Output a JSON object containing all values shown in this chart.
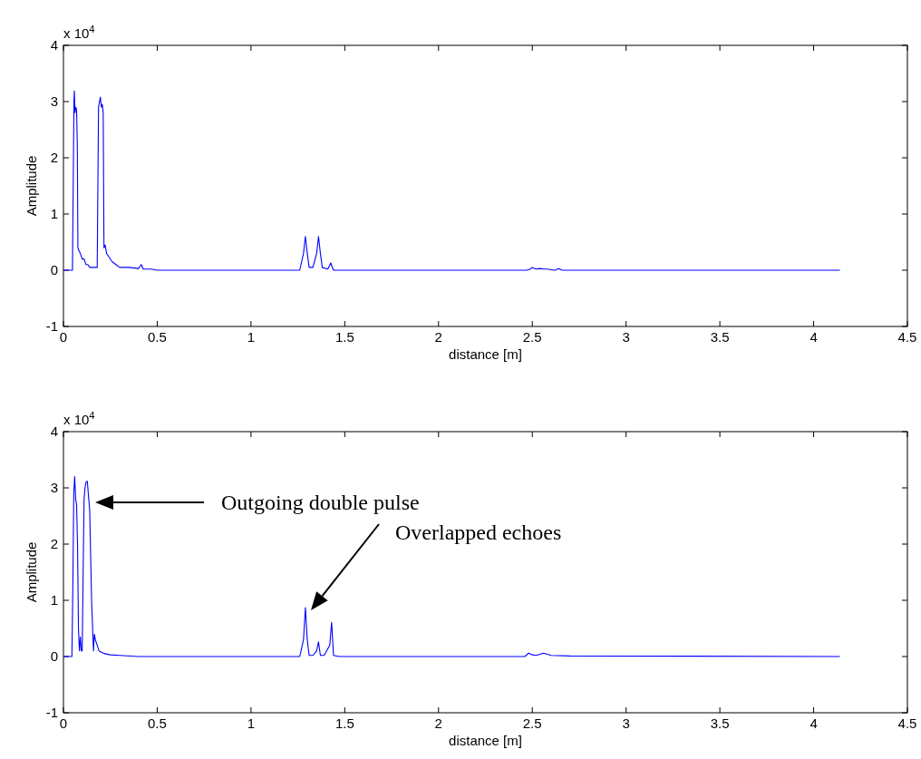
{
  "chart_data": [
    {
      "type": "line",
      "xlabel": "distance [m]",
      "ylabel": "Amplitude",
      "xlim": [
        0,
        4.5
      ],
      "ylim": [
        -1,
        4
      ],
      "xticks": [
        0,
        0.5,
        1,
        1.5,
        2,
        2.5,
        3,
        3.5,
        4,
        4.5
      ],
      "yticks": [
        -1,
        0,
        1,
        2,
        3,
        4
      ],
      "grid": false,
      "marker": "none",
      "line_style": "solid",
      "annotations": [
        "x 10$^{4}$"
      ],
      "series": [
        {
          "color": "#0000ff",
          "x": [
            0,
            0.048,
            0.052,
            0.056,
            0.058,
            0.062,
            0.066,
            0.07,
            0.074,
            0.077,
            0.082,
            0.09,
            0.1,
            0.11,
            0.12,
            0.13,
            0.14,
            0.15,
            0.16,
            0.17,
            0.18,
            0.187,
            0.192,
            0.197,
            0.202,
            0.207,
            0.212,
            0.216,
            0.222,
            0.23,
            0.24,
            0.26,
            0.28,
            0.3,
            0.35,
            0.4,
            0.415,
            0.425,
            0.47,
            0.5,
            1.26,
            1.28,
            1.29,
            1.3,
            1.31,
            1.33,
            1.35,
            1.36,
            1.37,
            1.38,
            1.41,
            1.425,
            1.44,
            1.46,
            2.47,
            2.49,
            2.5,
            2.52,
            2.54,
            2.56,
            2.58,
            2.62,
            2.64,
            2.66,
            4.14
          ],
          "values": [
            0,
            0,
            1.5,
            3.0,
            3.19,
            2.8,
            2.9,
            2.85,
            2.2,
            0.4,
            0.35,
            0.3,
            0.2,
            0.2,
            0.1,
            0.1,
            0.05,
            0.05,
            0.05,
            0.05,
            0.05,
            2.9,
            3.0,
            3.08,
            2.9,
            2.95,
            2.8,
            0.4,
            0.45,
            0.3,
            0.25,
            0.15,
            0.1,
            0.05,
            0.05,
            0.03,
            0.1,
            0.02,
            0.02,
            0,
            0,
            0.3,
            0.6,
            0.3,
            0.05,
            0.05,
            0.3,
            0.6,
            0.3,
            0.05,
            0.02,
            0.13,
            0,
            0,
            0,
            0.02,
            0.05,
            0.02,
            0.03,
            0.02,
            0.02,
            0,
            0.03,
            0,
            0
          ]
        }
      ]
    },
    {
      "type": "line",
      "xlabel": "distance [m]",
      "ylabel": "Amplitude",
      "xlim": [
        0,
        4.5
      ],
      "ylim": [
        -1,
        4
      ],
      "xticks": [
        0,
        0.5,
        1,
        1.5,
        2,
        2.5,
        3,
        3.5,
        4,
        4.5
      ],
      "yticks": [
        -1,
        0,
        1,
        2,
        3,
        4
      ],
      "grid": false,
      "marker": "none",
      "line_style": "solid",
      "annotations": [
        "x 10$^{4}$",
        "Outgoing double pulse",
        "Overlapped echoes"
      ],
      "series": [
        {
          "color": "#0000ff",
          "x": [
            0,
            0.045,
            0.05,
            0.055,
            0.06,
            0.065,
            0.07,
            0.075,
            0.08,
            0.085,
            0.09,
            0.095,
            0.1,
            0.105,
            0.11,
            0.115,
            0.12,
            0.127,
            0.135,
            0.14,
            0.15,
            0.16,
            0.165,
            0.17,
            0.18,
            0.19,
            0.2,
            0.22,
            0.25,
            0.3,
            0.4,
            1.26,
            1.28,
            1.29,
            1.3,
            1.31,
            1.33,
            1.35,
            1.36,
            1.37,
            1.39,
            1.42,
            1.43,
            1.44,
            1.47,
            2.46,
            2.48,
            2.5,
            2.52,
            2.56,
            2.6,
            2.7,
            4.14
          ],
          "values": [
            0,
            0,
            1.2,
            2.9,
            3.2,
            2.8,
            2.7,
            2.0,
            0.5,
            0.1,
            0.35,
            0.1,
            0.1,
            1.5,
            2.8,
            3.0,
            3.1,
            3.12,
            2.8,
            2.6,
            1.0,
            0.1,
            0.4,
            0.3,
            0.2,
            0.1,
            0.08,
            0.05,
            0.03,
            0.02,
            0,
            0,
            0.3,
            0.87,
            0.3,
            0.02,
            0.02,
            0.1,
            0.26,
            0.02,
            0.02,
            0.2,
            0.61,
            0.02,
            0,
            0,
            0.06,
            0.03,
            0.02,
            0.06,
            0.02,
            0.01,
            0
          ]
        }
      ]
    }
  ]
}
